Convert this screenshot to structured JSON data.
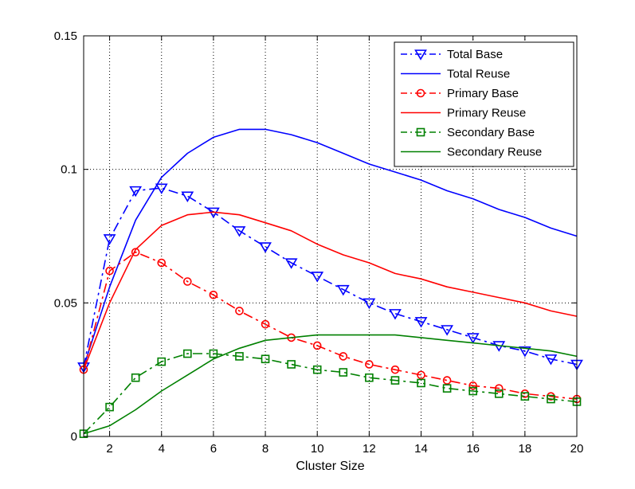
{
  "chart_data": {
    "type": "line",
    "title": "",
    "xlabel": "Cluster Size",
    "ylabel": "",
    "xlim": [
      1,
      20
    ],
    "ylim": [
      0,
      0.15
    ],
    "xticks": [
      2,
      4,
      6,
      8,
      10,
      12,
      14,
      16,
      18,
      20
    ],
    "xtick_labels": [
      "2",
      "4",
      "6",
      "8",
      "10",
      "12",
      "14",
      "16",
      "18",
      "20"
    ],
    "yticks": [
      0,
      0.05,
      0.1,
      0.15
    ],
    "ytick_labels": [
      "0",
      "0.05",
      "0.1",
      "0.15"
    ],
    "grid": true,
    "legend_position": "top-right",
    "x": [
      1,
      2,
      3,
      4,
      5,
      6,
      7,
      8,
      9,
      10,
      11,
      12,
      13,
      14,
      15,
      16,
      17,
      18,
      19,
      20
    ],
    "series": [
      {
        "name": "Total Base",
        "color": "#0000ff",
        "line_style": "dashdot",
        "marker": "triangle-down",
        "values": [
          0.026,
          0.074,
          0.092,
          0.093,
          0.09,
          0.084,
          0.077,
          0.071,
          0.065,
          0.06,
          0.055,
          0.05,
          0.046,
          0.043,
          0.04,
          0.037,
          0.034,
          0.032,
          0.029,
          0.027
        ]
      },
      {
        "name": "Total Reuse",
        "color": "#0000ff",
        "line_style": "solid",
        "marker": "none",
        "values": [
          0.026,
          0.056,
          0.081,
          0.097,
          0.106,
          0.112,
          0.115,
          0.115,
          0.113,
          0.11,
          0.106,
          0.102,
          0.099,
          0.096,
          0.092,
          0.089,
          0.085,
          0.082,
          0.078,
          0.075
        ]
      },
      {
        "name": "Primary Base",
        "color": "#ff0000",
        "line_style": "dashdot",
        "marker": "circle",
        "values": [
          0.025,
          0.062,
          0.069,
          0.065,
          0.058,
          0.053,
          0.047,
          0.042,
          0.037,
          0.034,
          0.03,
          0.027,
          0.025,
          0.023,
          0.021,
          0.019,
          0.018,
          0.016,
          0.015,
          0.014
        ]
      },
      {
        "name": "Primary Reuse",
        "color": "#ff0000",
        "line_style": "solid",
        "marker": "none",
        "values": [
          0.025,
          0.05,
          0.07,
          0.079,
          0.083,
          0.084,
          0.083,
          0.08,
          0.077,
          0.072,
          0.068,
          0.065,
          0.061,
          0.059,
          0.056,
          0.054,
          0.052,
          0.05,
          0.047,
          0.045
        ]
      },
      {
        "name": "Secondary Base",
        "color": "#008000",
        "line_style": "dashdot",
        "marker": "square",
        "values": [
          0.001,
          0.011,
          0.022,
          0.028,
          0.031,
          0.031,
          0.03,
          0.029,
          0.027,
          0.025,
          0.024,
          0.022,
          0.021,
          0.02,
          0.018,
          0.017,
          0.016,
          0.015,
          0.014,
          0.013
        ]
      },
      {
        "name": "Secondary Reuse",
        "color": "#008000",
        "line_style": "solid",
        "marker": "none",
        "values": [
          0.001,
          0.004,
          0.01,
          0.017,
          0.023,
          0.029,
          0.033,
          0.036,
          0.037,
          0.038,
          0.038,
          0.038,
          0.038,
          0.037,
          0.036,
          0.035,
          0.034,
          0.033,
          0.032,
          0.03
        ]
      }
    ]
  }
}
